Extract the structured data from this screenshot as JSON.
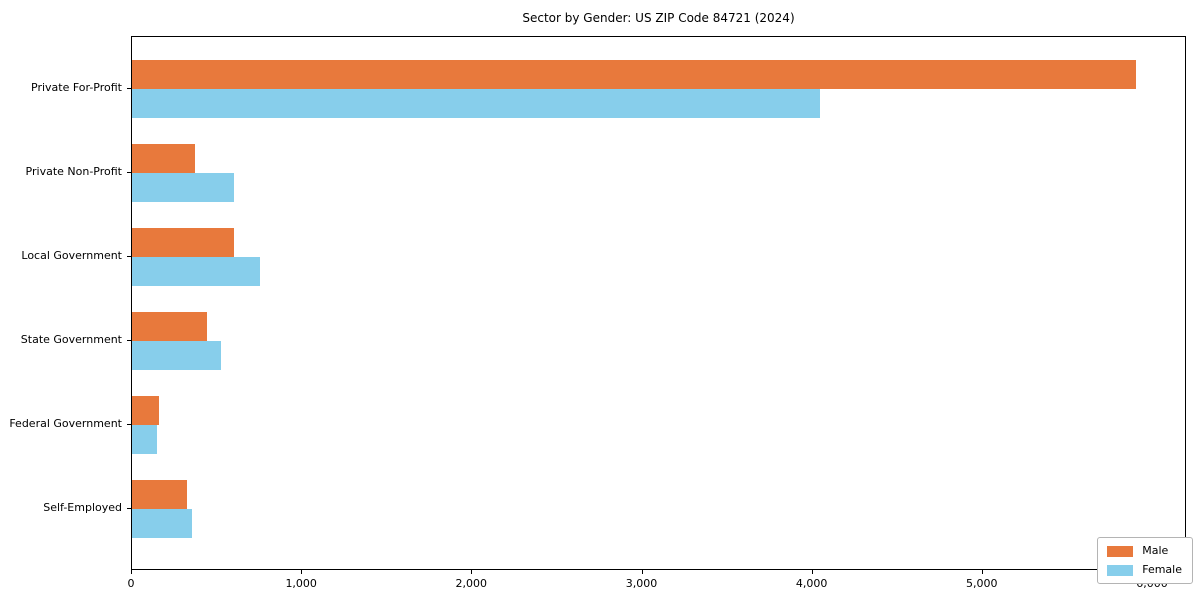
{
  "chart_data": {
    "type": "bar",
    "orientation": "horizontal",
    "title": "Sector by Gender: US ZIP Code 84721 (2024)",
    "categories": [
      "Private For-Profit",
      "Private Non-Profit",
      "Local Government",
      "State Government",
      "Federal Government",
      "Self-Employed"
    ],
    "series": [
      {
        "name": "Male",
        "color": "#E8793C",
        "values": [
          5900,
          370,
          600,
          440,
          160,
          320
        ]
      },
      {
        "name": "Female",
        "color": "#87CEEB",
        "values": [
          4040,
          600,
          750,
          520,
          145,
          350
        ]
      }
    ],
    "xlabel": "",
    "ylabel": "",
    "xlim": [
      0,
      6200
    ],
    "xticks": [
      0,
      1000,
      2000,
      3000,
      4000,
      5000,
      6000
    ],
    "xtick_labels": [
      "0",
      "1,000",
      "2,000",
      "3,000",
      "4,000",
      "5,000",
      "6,000"
    ],
    "grid": false,
    "legend": {
      "position": "lower right",
      "entries": [
        "Male",
        "Female"
      ]
    }
  },
  "colors": {
    "male": "#E8793C",
    "female": "#87CEEB",
    "axis": "#000000",
    "background": "#ffffff"
  }
}
